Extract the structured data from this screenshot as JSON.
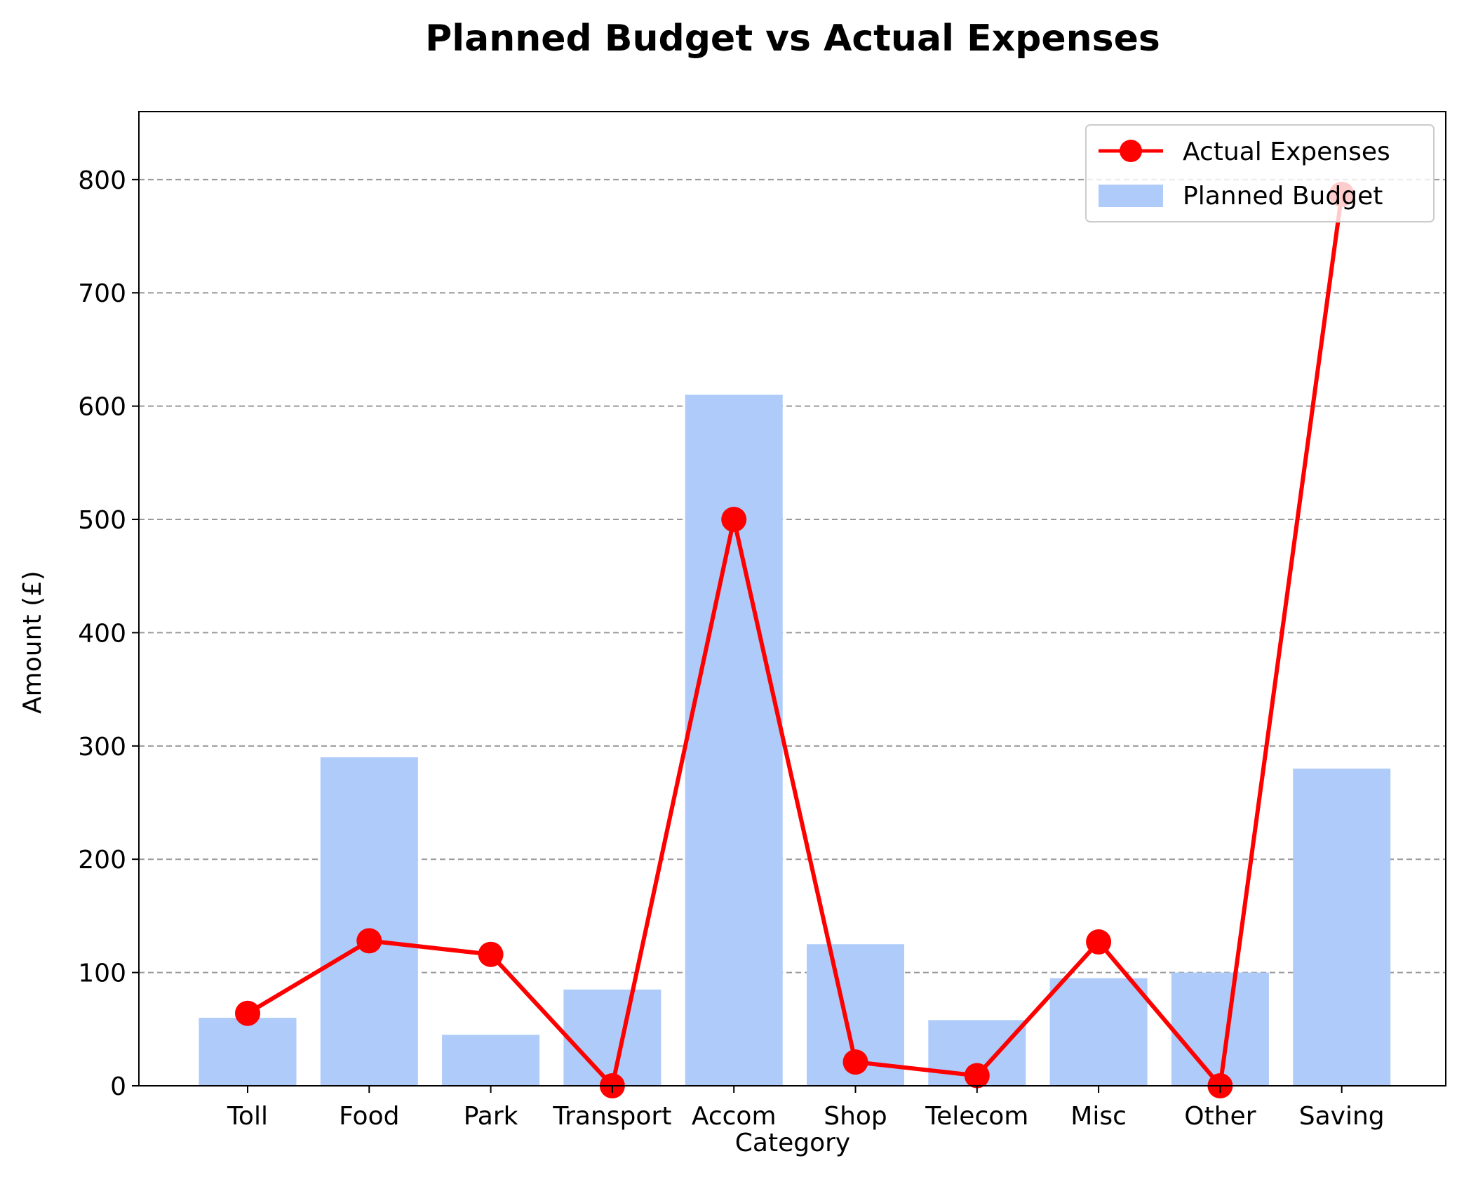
{
  "chart_data": {
    "type": "bar",
    "title": "Planned Budget vs Actual Expenses",
    "xlabel": "Category",
    "ylabel": "Amount (£)",
    "categories": [
      "Toll",
      "Food",
      "Park",
      "Transport",
      "Accom",
      "Shop",
      "Telecom",
      "Misc",
      "Other",
      "Saving"
    ],
    "ylim": [
      0,
      860
    ],
    "yticks": [
      0,
      100,
      200,
      300,
      400,
      500,
      600,
      700,
      800
    ],
    "ytick_labels": [
      "0",
      "100",
      "200",
      "300",
      "400",
      "500",
      "600",
      "700",
      "800"
    ],
    "grid": "y, dashed",
    "legend_position": "top-right",
    "series": [
      {
        "name": "Planned Budget",
        "type": "bar",
        "color": "#aecbfa",
        "values": [
          60,
          290,
          45,
          85,
          610,
          125,
          58,
          95,
          100,
          280
        ]
      },
      {
        "name": "Actual Expenses",
        "type": "line",
        "color": "#ff0000",
        "marker": "circle",
        "values": [
          64,
          128,
          116,
          0,
          500,
          21,
          9,
          127,
          0,
          787
        ]
      }
    ]
  }
}
